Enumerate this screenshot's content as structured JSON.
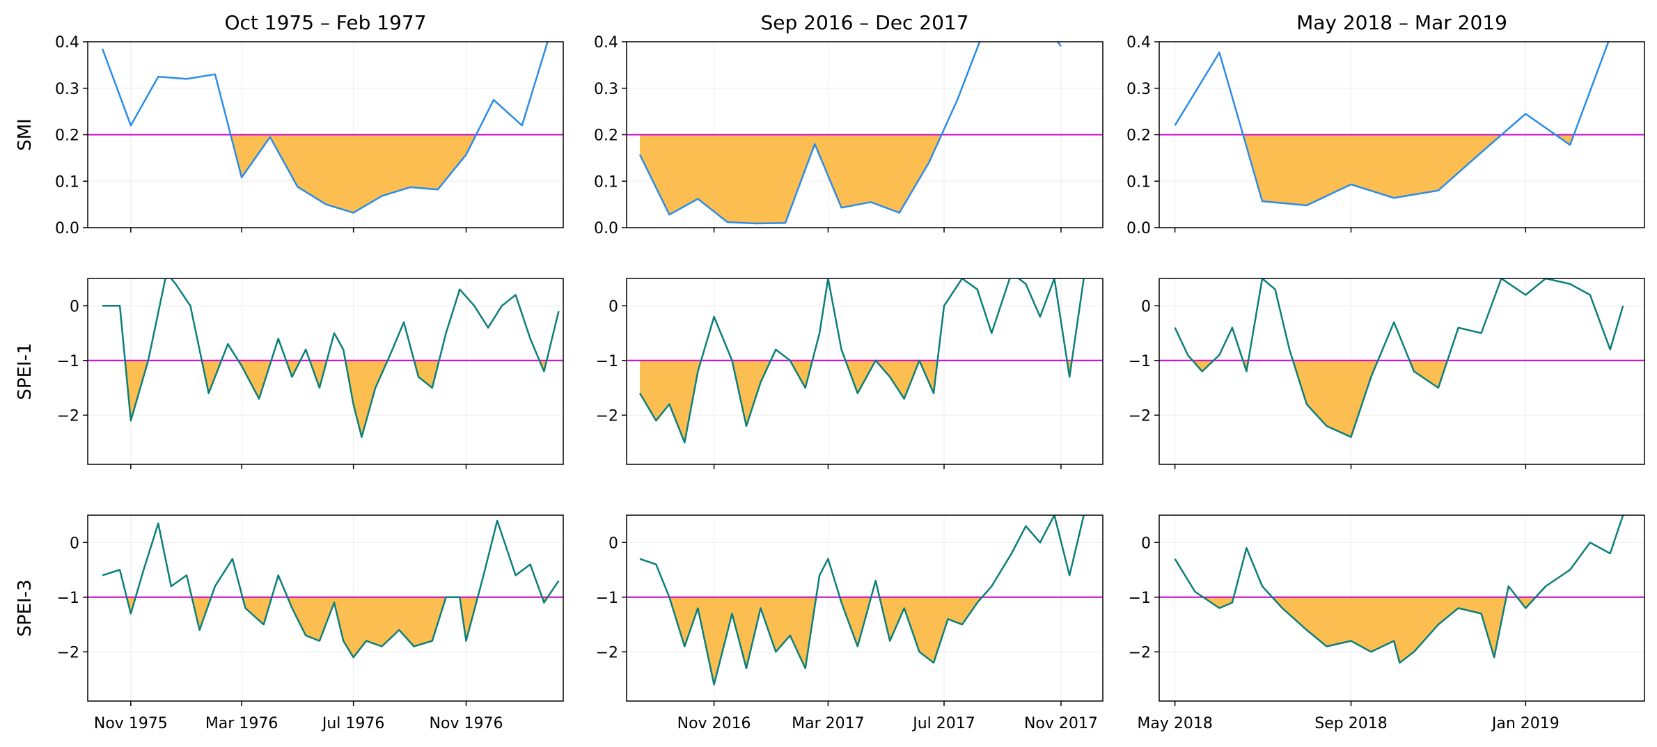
{
  "chart_data": {
    "type": "line",
    "threshold_color": "#cc00cc",
    "fill_color": "#fdb73e",
    "smi_color": "#2b8ce8",
    "spei_color": "#0b7f7a",
    "grid": true,
    "rows": [
      {
        "label": "SMI",
        "ylim": [
          0,
          0.4
        ],
        "yticks": [
          0.0,
          0.1,
          0.2,
          0.3,
          0.4
        ],
        "ytick_labels": [
          "0.0",
          "0.1",
          "0.2",
          "0.3",
          "0.4"
        ],
        "threshold": 0.2
      },
      {
        "label": "SPEI-1",
        "ylim": [
          -2.9,
          0.5
        ],
        "yticks": [
          0,
          -1,
          -2
        ],
        "ytick_labels": [
          "0",
          "−1",
          "−2"
        ],
        "threshold": -1
      },
      {
        "label": "SPEI-3",
        "ylim": [
          -2.9,
          0.5
        ],
        "yticks": [
          0,
          -1,
          -2
        ],
        "ytick_labels": [
          "0",
          "−1",
          "−2"
        ],
        "threshold": -1
      }
    ],
    "columns": [
      {
        "title": "Oct 1975 – Feb 1977",
        "x_range": [
          "1975-09-15",
          "1977-02-15"
        ],
        "xticks": [
          {
            "date": "1975-11-01",
            "label": "Nov 1975"
          },
          {
            "date": "1976-03-01",
            "label": "Mar 1976"
          },
          {
            "date": "1976-07-01",
            "label": "Jul 1976"
          },
          {
            "date": "1976-11-01",
            "label": "Nov 1976"
          }
        ],
        "smi": {
          "x": [
            "1975-10-01",
            "1975-11-01",
            "1975-12-01",
            "1976-01-01",
            "1976-02-01",
            "1976-03-01",
            "1976-04-01",
            "1976-05-01",
            "1976-06-01",
            "1976-07-01",
            "1976-08-01",
            "1976-09-01",
            "1976-10-01",
            "1976-11-01",
            "1976-12-01",
            "1977-01-01",
            "1977-02-01"
          ],
          "y": [
            0.385,
            0.22,
            0.325,
            0.32,
            0.33,
            0.108,
            0.195,
            0.088,
            0.05,
            0.032,
            0.068,
            0.087,
            0.082,
            0.157,
            0.275,
            0.22,
            0.42
          ]
        },
        "spei1": {
          "x": [
            "1975-10-01",
            "1975-10-20",
            "1975-11-01",
            "1975-11-20",
            "1975-12-10",
            "1975-12-20",
            "1976-01-05",
            "1976-01-25",
            "1976-02-15",
            "1976-03-01",
            "1976-03-20",
            "1976-04-10",
            "1976-04-25",
            "1976-05-10",
            "1976-05-25",
            "1976-06-10",
            "1976-06-20",
            "1976-07-01",
            "1976-07-10",
            "1976-07-25",
            "1976-08-10",
            "1976-08-25",
            "1976-09-10",
            "1976-09-25",
            "1976-10-10",
            "1976-10-25",
            "1976-11-10",
            "1976-11-25",
            "1976-12-10",
            "1976-12-25",
            "1977-01-10",
            "1977-01-25",
            "1977-02-10"
          ],
          "y": [
            0.0,
            0.0,
            -2.1,
            -1.0,
            0.6,
            0.4,
            0.0,
            -1.6,
            -0.7,
            -1.1,
            -1.7,
            -0.6,
            -1.3,
            -0.8,
            -1.5,
            -0.5,
            -0.8,
            -1.8,
            -2.4,
            -1.5,
            -0.9,
            -0.3,
            -1.3,
            -1.5,
            -0.5,
            0.3,
            0.0,
            -0.4,
            0.0,
            0.2,
            -0.6,
            -1.2,
            -0.1
          ]
        },
        "spei3": {
          "x": [
            "1975-10-01",
            "1975-10-20",
            "1975-11-01",
            "1975-11-15",
            "1975-12-01",
            "1975-12-15",
            "1976-01-01",
            "1976-01-15",
            "1976-02-01",
            "1976-02-20",
            "1976-03-05",
            "1976-03-25",
            "1976-04-10",
            "1976-04-25",
            "1976-05-10",
            "1976-05-25",
            "1976-06-10",
            "1976-06-20",
            "1976-07-01",
            "1976-07-15",
            "1976-08-01",
            "1976-08-20",
            "1976-09-05",
            "1976-09-25",
            "1976-10-10",
            "1976-10-25",
            "1976-11-01",
            "1976-11-20",
            "1976-12-05",
            "1976-12-25",
            "1977-01-10",
            "1977-01-25",
            "1977-02-10"
          ],
          "y": [
            -0.6,
            -0.5,
            -1.3,
            -0.5,
            0.35,
            -0.8,
            -0.6,
            -1.6,
            -0.8,
            -0.3,
            -1.2,
            -1.5,
            -0.6,
            -1.2,
            -1.7,
            -1.8,
            -1.1,
            -1.8,
            -2.1,
            -1.8,
            -1.9,
            -1.6,
            -1.9,
            -1.8,
            -1.0,
            -1.0,
            -1.8,
            -0.6,
            0.4,
            -0.6,
            -0.4,
            -1.1,
            -0.7
          ]
        }
      },
      {
        "title": "Sep 2016 – Dec 2017",
        "x_range": [
          "2016-08-01",
          "2017-12-15"
        ],
        "xticks": [
          {
            "date": "2016-11-01",
            "label": "Nov 2016"
          },
          {
            "date": "2017-03-01",
            "label": "Mar 2017"
          },
          {
            "date": "2017-07-01",
            "label": "Jul 2017"
          },
          {
            "date": "2017-11-01",
            "label": "Nov 2017"
          }
        ],
        "smi": {
          "x": [
            "2016-08-15",
            "2016-09-15",
            "2016-10-15",
            "2016-11-15",
            "2016-12-15",
            "2017-01-15",
            "2017-02-15",
            "2017-03-15",
            "2017-04-15",
            "2017-05-15",
            "2017-06-15",
            "2017-07-15",
            "2017-08-15",
            "2017-09-15",
            "2017-10-15",
            "2017-11-01"
          ],
          "y": [
            0.157,
            0.028,
            0.062,
            0.012,
            0.009,
            0.01,
            0.18,
            0.043,
            0.055,
            0.032,
            0.14,
            0.275,
            0.44,
            0.44,
            0.44,
            0.39
          ]
        },
        "spei1": {
          "x": [
            "2016-08-15",
            "2016-09-01",
            "2016-09-15",
            "2016-10-01",
            "2016-10-15",
            "2016-11-01",
            "2016-11-20",
            "2016-12-05",
            "2016-12-20",
            "2017-01-05",
            "2017-01-20",
            "2017-02-05",
            "2017-02-20",
            "2017-03-01",
            "2017-03-15",
            "2017-04-01",
            "2017-04-20",
            "2017-05-05",
            "2017-05-20",
            "2017-06-05",
            "2017-06-20",
            "2017-07-01",
            "2017-07-20",
            "2017-08-05",
            "2017-08-20",
            "2017-09-10",
            "2017-09-25",
            "2017-10-10",
            "2017-10-25",
            "2017-11-10",
            "2017-11-25"
          ],
          "y": [
            -1.6,
            -2.1,
            -1.8,
            -2.5,
            -1.2,
            -0.2,
            -1.0,
            -2.2,
            -1.4,
            -0.8,
            -1.0,
            -1.5,
            -0.5,
            0.5,
            -0.8,
            -1.6,
            -1.0,
            -1.3,
            -1.7,
            -1.0,
            -1.6,
            0.0,
            0.5,
            0.3,
            -0.5,
            0.6,
            0.4,
            -0.2,
            0.5,
            -1.3,
            0.5
          ]
        },
        "spei3": {
          "x": [
            "2016-08-15",
            "2016-09-01",
            "2016-09-15",
            "2016-10-01",
            "2016-10-15",
            "2016-11-01",
            "2016-11-20",
            "2016-12-05",
            "2016-12-20",
            "2017-01-05",
            "2017-01-20",
            "2017-02-05",
            "2017-02-20",
            "2017-03-01",
            "2017-03-15",
            "2017-04-01",
            "2017-04-20",
            "2017-05-05",
            "2017-05-20",
            "2017-06-05",
            "2017-06-20",
            "2017-07-05",
            "2017-07-20",
            "2017-08-05",
            "2017-08-20",
            "2017-09-10",
            "2017-09-25",
            "2017-10-10",
            "2017-10-25",
            "2017-11-10",
            "2017-11-25"
          ],
          "y": [
            -0.3,
            -0.4,
            -1.0,
            -1.9,
            -1.2,
            -2.6,
            -1.3,
            -2.3,
            -1.2,
            -2.0,
            -1.7,
            -2.3,
            -0.6,
            -0.3,
            -1.1,
            -1.9,
            -0.7,
            -1.8,
            -1.2,
            -2.0,
            -2.2,
            -1.4,
            -1.5,
            -1.1,
            -0.8,
            -0.2,
            0.3,
            0.0,
            0.5,
            -0.6,
            0.5
          ]
        }
      },
      {
        "title": "May 2018 – Mar 2019",
        "x_range": [
          "2018-04-20",
          "2019-03-25"
        ],
        "xticks": [
          {
            "date": "2018-05-01",
            "label": "May 2018"
          },
          {
            "date": "2018-09-01",
            "label": "Sep 2018"
          },
          {
            "date": "2019-01-01",
            "label": "Jan 2019"
          }
        ],
        "smi": {
          "x": [
            "2018-05-01",
            "2018-06-01",
            "2018-07-01",
            "2018-08-01",
            "2018-09-01",
            "2018-10-01",
            "2018-11-01",
            "2018-12-01",
            "2019-01-01",
            "2019-02-01",
            "2019-03-01"
          ],
          "y": [
            0.22,
            0.377,
            0.057,
            0.048,
            0.093,
            0.064,
            0.08,
            0.162,
            0.245,
            0.178,
            0.41
          ]
        },
        "spei1": {
          "x": [
            "2018-05-01",
            "2018-05-10",
            "2018-05-20",
            "2018-06-01",
            "2018-06-10",
            "2018-06-20",
            "2018-07-01",
            "2018-07-10",
            "2018-07-20",
            "2018-08-01",
            "2018-08-15",
            "2018-09-01",
            "2018-09-15",
            "2018-10-01",
            "2018-10-15",
            "2018-11-01",
            "2018-11-15",
            "2018-12-01",
            "2018-12-15",
            "2019-01-01",
            "2019-01-15",
            "2019-02-01",
            "2019-02-15",
            "2019-03-01",
            "2019-03-10"
          ],
          "y": [
            -0.4,
            -0.9,
            -1.2,
            -0.9,
            -0.4,
            -1.2,
            0.5,
            0.3,
            -0.8,
            -1.8,
            -2.2,
            -2.4,
            -1.3,
            -0.3,
            -1.2,
            -1.5,
            -0.4,
            -0.5,
            0.5,
            0.2,
            0.5,
            0.4,
            0.2,
            -0.8,
            0.0
          ]
        },
        "spei3": {
          "x": [
            "2018-05-01",
            "2018-05-15",
            "2018-06-01",
            "2018-06-10",
            "2018-06-20",
            "2018-07-01",
            "2018-07-15",
            "2018-08-01",
            "2018-08-15",
            "2018-09-01",
            "2018-09-15",
            "2018-10-01",
            "2018-10-05",
            "2018-10-15",
            "2018-11-01",
            "2018-11-15",
            "2018-12-01",
            "2018-12-10",
            "2018-12-20",
            "2019-01-01",
            "2019-01-15",
            "2019-02-01",
            "2019-02-15",
            "2019-03-01",
            "2019-03-10"
          ],
          "y": [
            -0.3,
            -0.9,
            -1.2,
            -1.1,
            -0.1,
            -0.8,
            -1.2,
            -1.6,
            -1.9,
            -1.8,
            -2.0,
            -1.8,
            -2.2,
            -2.0,
            -1.5,
            -1.2,
            -1.3,
            -2.1,
            -0.8,
            -1.2,
            -0.8,
            -0.5,
            0.0,
            -0.2,
            0.5
          ]
        }
      }
    ]
  }
}
